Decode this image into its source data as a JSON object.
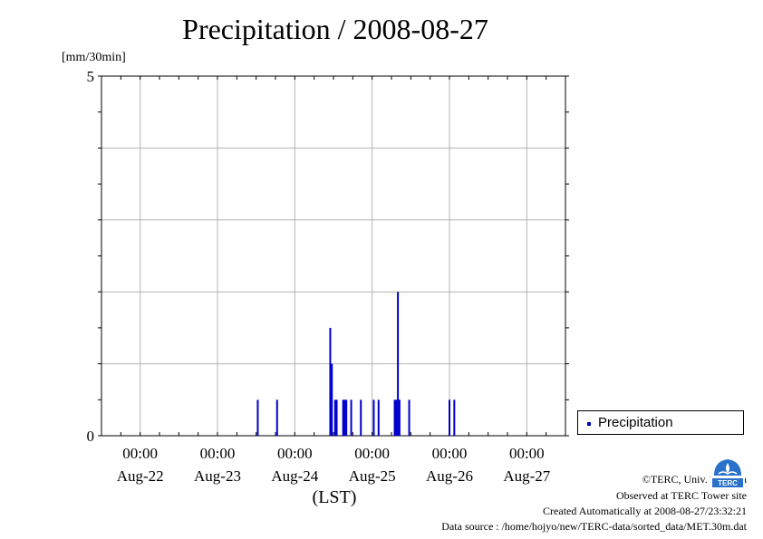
{
  "chart_data": {
    "type": "bar",
    "title": "Precipitation / 2008-08-27",
    "ylabel": "[mm/30min]",
    "xlabel": "(LST)",
    "ylim": [
      0,
      5
    ],
    "y_ticks": [
      "0",
      "5"
    ],
    "x_ticks": [
      {
        "time": "00:00",
        "date": "Aug-22"
      },
      {
        "time": "00:00",
        "date": "Aug-23"
      },
      {
        "time": "00:00",
        "date": "Aug-24"
      },
      {
        "time": "00:00",
        "date": "Aug-25"
      },
      {
        "time": "00:00",
        "date": "Aug-26"
      },
      {
        "time": "00:00",
        "date": "Aug-27"
      }
    ],
    "xlim": [
      "2008-08-21 12:00",
      "2008-08-27 12:00"
    ],
    "grid": true,
    "legend_position": "bottom-right",
    "series": [
      {
        "name": "Precipitation",
        "color": "#0000cc",
        "points": [
          {
            "x": "2008-08-23 12:30",
            "y": 0.5
          },
          {
            "x": "2008-08-23 18:30",
            "y": 0.5
          },
          {
            "x": "2008-08-24 11:00",
            "y": 1.5
          },
          {
            "x": "2008-08-24 11:30",
            "y": 1.0
          },
          {
            "x": "2008-08-24 12:30",
            "y": 0.5
          },
          {
            "x": "2008-08-24 13:00",
            "y": 0.5
          },
          {
            "x": "2008-08-24 15:00",
            "y": 0.5
          },
          {
            "x": "2008-08-24 15:30",
            "y": 0.5
          },
          {
            "x": "2008-08-24 16:00",
            "y": 0.5
          },
          {
            "x": "2008-08-24 17:30",
            "y": 0.5
          },
          {
            "x": "2008-08-24 20:30",
            "y": 0.5
          },
          {
            "x": "2008-08-25 00:30",
            "y": 0.5
          },
          {
            "x": "2008-08-25 02:00",
            "y": 0.5
          },
          {
            "x": "2008-08-25 07:00",
            "y": 0.5
          },
          {
            "x": "2008-08-25 07:30",
            "y": 0.5
          },
          {
            "x": "2008-08-25 08:00",
            "y": 2.0
          },
          {
            "x": "2008-08-25 08:30",
            "y": 0.5
          },
          {
            "x": "2008-08-25 11:30",
            "y": 0.5
          },
          {
            "x": "2008-08-26 00:00",
            "y": 0.5
          },
          {
            "x": "2008-08-26 01:30",
            "y": 0.5
          }
        ]
      }
    ]
  },
  "legend": {
    "label": "Precipitation",
    "color": "#0000cc"
  },
  "footer": {
    "copyright": "©TERC, Univ. Tsukuba",
    "observed": "Observed at TERC Tower site",
    "created": "Created Automatically at 2008-08-27/23:32:21",
    "source": "Data source : /home/hojyo/new/TERC-data/sorted_data/MET.30m.dat",
    "logo_text": "TERC"
  }
}
